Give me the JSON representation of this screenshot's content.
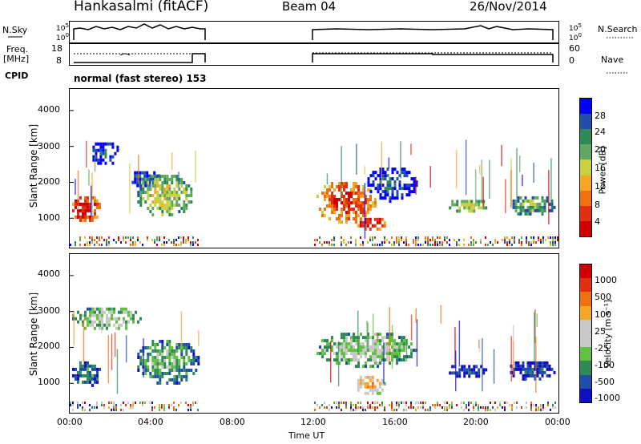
{
  "header": {
    "station": "Hankasalmi (fitACF)",
    "beam": "Beam 04",
    "date": "26/Nov/2014"
  },
  "aux_labels": {
    "nsky": "N.Sky",
    "freq": "Freq.",
    "freq_unit": "[MHz]",
    "cpid": "CPID",
    "nsearch": "N.Search",
    "nave": "Nave",
    "cpid_text": "normal (fast stereo) 153"
  },
  "aux_ticks": {
    "noise_left": [
      "10^5",
      "10^0"
    ],
    "noise_right": [
      "10^5",
      "10^0"
    ],
    "freq_left": [
      "18",
      "8"
    ],
    "nave_right": [
      "60",
      "0"
    ]
  },
  "colors": {
    "power": [
      "#0000ff",
      "#1f4fa8",
      "#2e8b57",
      "#5fa85f",
      "#c8d040",
      "#f5a623",
      "#f07010",
      "#e03010",
      "#d00000"
    ],
    "velocity": [
      "#1010c0",
      "#1f4fa8",
      "#2e8b57",
      "#60c040",
      "#c8c8c8",
      "#c8c8c8",
      "#f5a623",
      "#f07010",
      "#e03010",
      "#d00000"
    ],
    "ground": "#c0c0c0"
  },
  "chart_data": [
    {
      "type": "heatmap",
      "title": "",
      "xlabel": "Time UT",
      "ylabel": "Slant Range [km]",
      "x_ticks": [
        "00:00",
        "04:00",
        "08:00",
        "12:00",
        "16:00",
        "20:00",
        "00:00"
      ],
      "y_ticks": [
        "1000",
        "2000",
        "3000",
        "4000"
      ],
      "xlim_hours": [
        0,
        24
      ],
      "ylim_km": [
        180,
        4600
      ],
      "colorbar": {
        "label": "Power [dB]",
        "ticks": [
          "28",
          "24",
          "20",
          "16",
          "12",
          "8",
          "4"
        ]
      },
      "echo_regions": [
        {
          "t0": 0.0,
          "t1": 1.5,
          "r0": 950,
          "r1": 1700,
          "level": 8
        },
        {
          "t0": 1.0,
          "t1": 2.4,
          "r0": 2500,
          "r1": 3200,
          "level": 1
        },
        {
          "t0": 2.8,
          "t1": 4.4,
          "r0": 1900,
          "r1": 2400,
          "level": 1
        },
        {
          "t0": 3.2,
          "t1": 6.0,
          "r0": 1050,
          "r1": 2300,
          "level": 4
        },
        {
          "t0": 12.0,
          "t1": 15.0,
          "r0": 900,
          "r1": 2100,
          "level": 7
        },
        {
          "t0": 14.0,
          "t1": 15.5,
          "r0": 700,
          "r1": 1100,
          "level": 8
        },
        {
          "t0": 14.5,
          "t1": 17.0,
          "r0": 1500,
          "r1": 2500,
          "level": 1
        },
        {
          "t0": 18.5,
          "t1": 20.5,
          "r0": 1200,
          "r1": 1600,
          "level": 4
        },
        {
          "t0": 21.5,
          "t1": 23.8,
          "r0": 1100,
          "r1": 1700,
          "level": 3
        }
      ]
    },
    {
      "type": "heatmap",
      "title": "",
      "xlabel": "Time UT",
      "ylabel": "Slant Range [km]",
      "x_ticks": [
        "00:00",
        "04:00",
        "08:00",
        "12:00",
        "16:00",
        "20:00",
        "00:00"
      ],
      "y_ticks": [
        "1000",
        "2000",
        "3000",
        "4000"
      ],
      "xlim_hours": [
        0,
        24
      ],
      "ylim_km": [
        180,
        4600
      ],
      "colorbar": {
        "label": "Velocity [m s⁻¹]",
        "ticks": [
          "1000",
          "500",
          "100",
          "25",
          "-25",
          "-100",
          "-500",
          "-1000"
        ]
      },
      "echo_regions": [
        {
          "t0": 0.0,
          "t1": 1.5,
          "r0": 950,
          "r1": 1700,
          "level": 2
        },
        {
          "t0": 0.0,
          "t1": 3.5,
          "r0": 2500,
          "r1": 3200,
          "level": 4
        },
        {
          "t0": 3.2,
          "t1": 6.3,
          "r0": 1000,
          "r1": 2300,
          "level": 3
        },
        {
          "t0": 12.0,
          "t1": 17.0,
          "r0": 1500,
          "r1": 2500,
          "level": 4
        },
        {
          "t0": 14.0,
          "t1": 15.5,
          "r0": 700,
          "r1": 1300,
          "level": 6
        },
        {
          "t0": 18.5,
          "t1": 20.5,
          "r0": 1200,
          "r1": 1600,
          "level": 1
        },
        {
          "t0": 21.5,
          "t1": 23.8,
          "r0": 1100,
          "r1": 1700,
          "level": 1
        }
      ]
    }
  ]
}
